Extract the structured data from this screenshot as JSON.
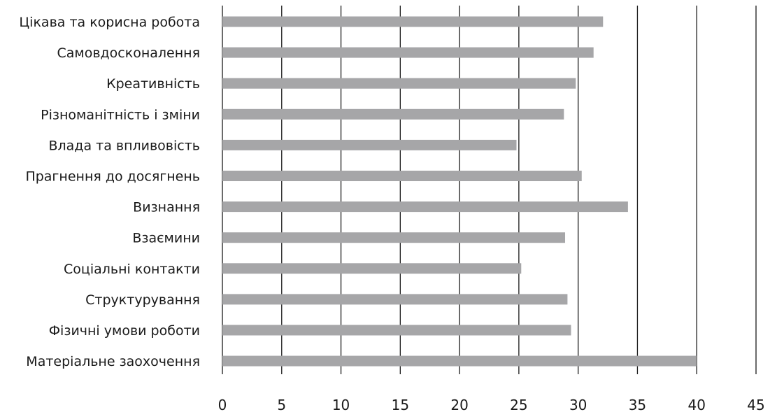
{
  "chart_data": {
    "type": "bar",
    "orientation": "horizontal",
    "title": "",
    "xlabel": "",
    "ylabel": "",
    "categories": [
      "Цікава та корисна робота",
      "Самовдосконалення",
      "Креативність",
      "Різноманітність і зміни",
      "Влада та впливовість",
      "Прагнення до досягнень",
      "Визнання",
      "Взаємини",
      "Соціальні контакти",
      "Структурування",
      "Фізичні умови роботи",
      "Матеріальне заохочення"
    ],
    "values": [
      32.1,
      31.3,
      29.8,
      28.8,
      24.8,
      30.3,
      34.2,
      28.9,
      25.2,
      29.1,
      29.4,
      40.0
    ],
    "xlim": [
      0,
      45
    ],
    "x_ticks": [
      0,
      5,
      10,
      15,
      20,
      25,
      30,
      35,
      40,
      45
    ],
    "grid": "vertical",
    "legend": "none",
    "bar_color": "#a6a6a8",
    "grid_color": "#1a1a1a",
    "text_color": "#1a1a1a"
  }
}
